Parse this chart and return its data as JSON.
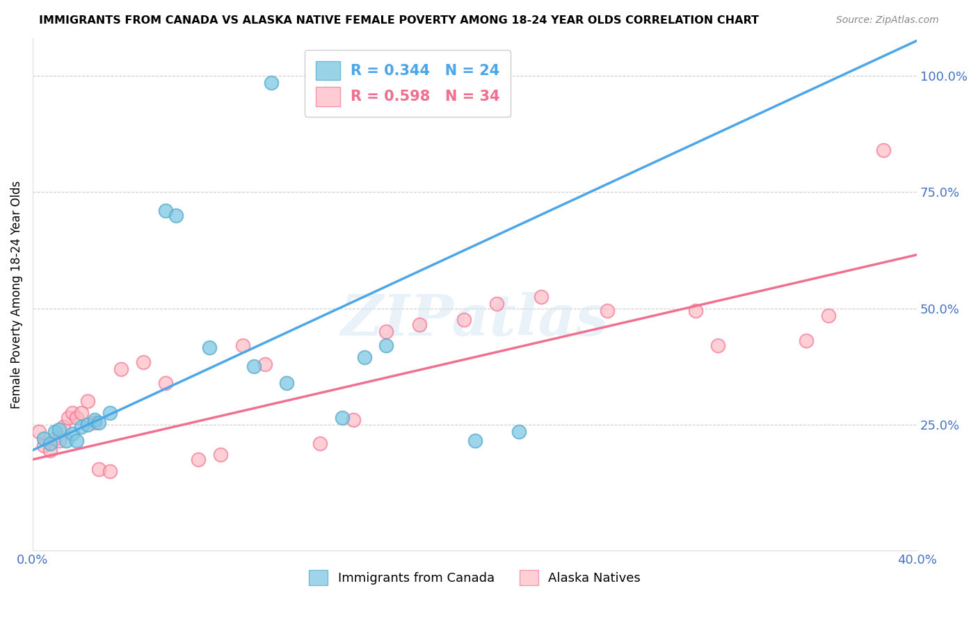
{
  "title": "IMMIGRANTS FROM CANADA VS ALASKA NATIVE FEMALE POVERTY AMONG 18-24 YEAR OLDS CORRELATION CHART",
  "source": "Source: ZipAtlas.com",
  "ylabel": "Female Poverty Among 18-24 Year Olds",
  "x_min": 0.0,
  "x_max": 0.4,
  "y_min": -0.02,
  "y_max": 1.08,
  "y_ticks_right": [
    0.0,
    0.25,
    0.5,
    0.75,
    1.0
  ],
  "y_tick_labels_right": [
    "",
    "25.0%",
    "50.0%",
    "75.0%",
    "100.0%"
  ],
  "legend_blue_r": "0.344",
  "legend_blue_n": "24",
  "legend_pink_r": "0.598",
  "legend_pink_n": "34",
  "blue_scatter_color": "#7ec8e3",
  "blue_edge_color": "#5aabcc",
  "pink_scatter_color": "#ffb6c1",
  "pink_edge_color": "#f07090",
  "blue_line_color": "#4da6e8",
  "pink_line_color": "#f07090",
  "dashed_line_color": "#aacfee",
  "tick_color": "#4472C4",
  "watermark": "ZIPatlas",
  "background_color": "#ffffff",
  "grid_color": "#cccccc",
  "blue_scatter_x": [
    0.005,
    0.008,
    0.01,
    0.012,
    0.015,
    0.018,
    0.02,
    0.022,
    0.025,
    0.028,
    0.03,
    0.035,
    0.06,
    0.065,
    0.08,
    0.1,
    0.115,
    0.14,
    0.15,
    0.16,
    0.2,
    0.22,
    0.108,
    0.135
  ],
  "blue_scatter_y": [
    0.22,
    0.21,
    0.235,
    0.24,
    0.215,
    0.23,
    0.215,
    0.245,
    0.25,
    0.26,
    0.255,
    0.275,
    0.71,
    0.7,
    0.415,
    0.375,
    0.34,
    0.265,
    0.395,
    0.42,
    0.215,
    0.235,
    0.985,
    0.98
  ],
  "pink_scatter_x": [
    0.003,
    0.005,
    0.008,
    0.01,
    0.012,
    0.014,
    0.016,
    0.018,
    0.02,
    0.022,
    0.025,
    0.028,
    0.03,
    0.035,
    0.04,
    0.05,
    0.06,
    0.075,
    0.085,
    0.095,
    0.105,
    0.13,
    0.145,
    0.16,
    0.175,
    0.195,
    0.21,
    0.23,
    0.26,
    0.3,
    0.31,
    0.35,
    0.36,
    0.385
  ],
  "pink_scatter_y": [
    0.235,
    0.205,
    0.195,
    0.22,
    0.215,
    0.245,
    0.265,
    0.275,
    0.265,
    0.275,
    0.3,
    0.255,
    0.155,
    0.15,
    0.37,
    0.385,
    0.34,
    0.175,
    0.185,
    0.42,
    0.38,
    0.21,
    0.26,
    0.45,
    0.465,
    0.475,
    0.51,
    0.525,
    0.495,
    0.495,
    0.42,
    0.43,
    0.485,
    0.84
  ],
  "blue_reg_slope": 2.2,
  "blue_reg_intercept": 0.195,
  "pink_reg_slope": 1.1,
  "pink_reg_intercept": 0.175,
  "bottom_legend_labels": [
    "Immigrants from Canada",
    "Alaska Natives"
  ]
}
